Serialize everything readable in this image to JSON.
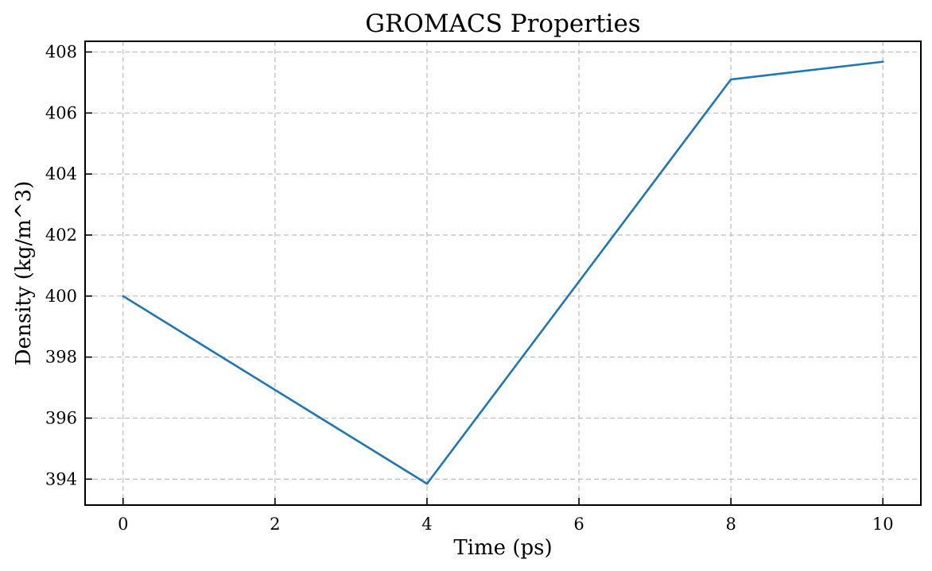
{
  "chart_data": {
    "type": "line",
    "title": "GROMACS Properties",
    "xlabel": "Time (ps)",
    "ylabel": "Density (kg/m^3)",
    "x": [
      0,
      4,
      8,
      10
    ],
    "series": [
      {
        "values": [
          400.0,
          393.85,
          407.1,
          407.68
        ],
        "color": "#1f77b4"
      }
    ],
    "xlim": [
      -0.5,
      10.5
    ],
    "ylim": [
      393.15,
      408.35
    ],
    "xticks": [
      0,
      2,
      4,
      6,
      8,
      10
    ],
    "yticks": [
      394,
      396,
      398,
      400,
      402,
      404,
      406,
      408
    ],
    "grid": true,
    "grid_style": "dashed",
    "ticks_direction": "in"
  }
}
